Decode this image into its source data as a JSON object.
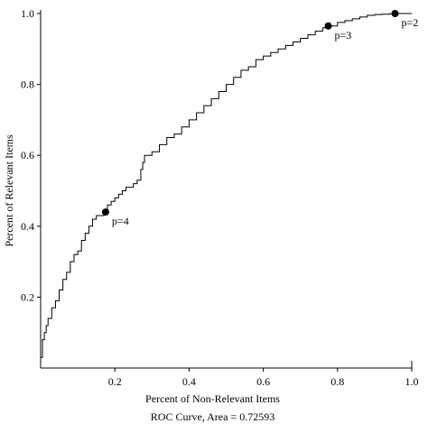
{
  "chart_data": {
    "type": "line",
    "title": "",
    "xlabel": "Percent of Non-Relevant Items",
    "ylabel": "Percent of Relevant Items",
    "xlim": [
      0,
      1
    ],
    "ylim": [
      0,
      1
    ],
    "grid": false,
    "x_ticks": [
      "0.2",
      "0.4",
      "0.6",
      "0.8",
      "1.0"
    ],
    "y_ticks": [
      "0.2",
      "0.4",
      "0.6",
      "0.8",
      "1.0"
    ],
    "caption": "ROC Curve, Area = 0.72593",
    "series": [
      {
        "name": "",
        "x": [
          0.0,
          0.005,
          0.01,
          0.015,
          0.02,
          0.03,
          0.04,
          0.05,
          0.06,
          0.07,
          0.08,
          0.09,
          0.1,
          0.11,
          0.12,
          0.13,
          0.14,
          0.15,
          0.16,
          0.17,
          0.175,
          0.18,
          0.19,
          0.2,
          0.21,
          0.22,
          0.23,
          0.24,
          0.25,
          0.26,
          0.27,
          0.275,
          0.28,
          0.3,
          0.32,
          0.34,
          0.36,
          0.38,
          0.4,
          0.42,
          0.44,
          0.46,
          0.48,
          0.5,
          0.52,
          0.54,
          0.56,
          0.58,
          0.6,
          0.62,
          0.64,
          0.66,
          0.68,
          0.7,
          0.72,
          0.74,
          0.76,
          0.775,
          0.8,
          0.82,
          0.84,
          0.86,
          0.88,
          0.9,
          0.92,
          0.94,
          0.955,
          0.97,
          1.0
        ],
        "y": [
          0.03,
          0.08,
          0.1,
          0.12,
          0.14,
          0.17,
          0.19,
          0.22,
          0.25,
          0.27,
          0.3,
          0.32,
          0.33,
          0.36,
          0.38,
          0.4,
          0.42,
          0.43,
          0.43,
          0.44,
          0.44,
          0.46,
          0.47,
          0.48,
          0.49,
          0.5,
          0.51,
          0.51,
          0.52,
          0.53,
          0.56,
          0.58,
          0.6,
          0.61,
          0.63,
          0.65,
          0.66,
          0.68,
          0.7,
          0.72,
          0.74,
          0.76,
          0.78,
          0.8,
          0.82,
          0.84,
          0.85,
          0.87,
          0.88,
          0.89,
          0.9,
          0.91,
          0.92,
          0.93,
          0.94,
          0.95,
          0.96,
          0.965,
          0.975,
          0.98,
          0.985,
          0.99,
          0.995,
          0.997,
          0.998,
          0.999,
          1.0,
          1.0,
          1.0
        ]
      }
    ],
    "annotations": [
      {
        "label": "p=4",
        "x": 0.175,
        "y": 0.44
      },
      {
        "label": "p=3",
        "x": 0.775,
        "y": 0.965
      },
      {
        "label": "p=2",
        "x": 0.955,
        "y": 1.0
      }
    ]
  }
}
